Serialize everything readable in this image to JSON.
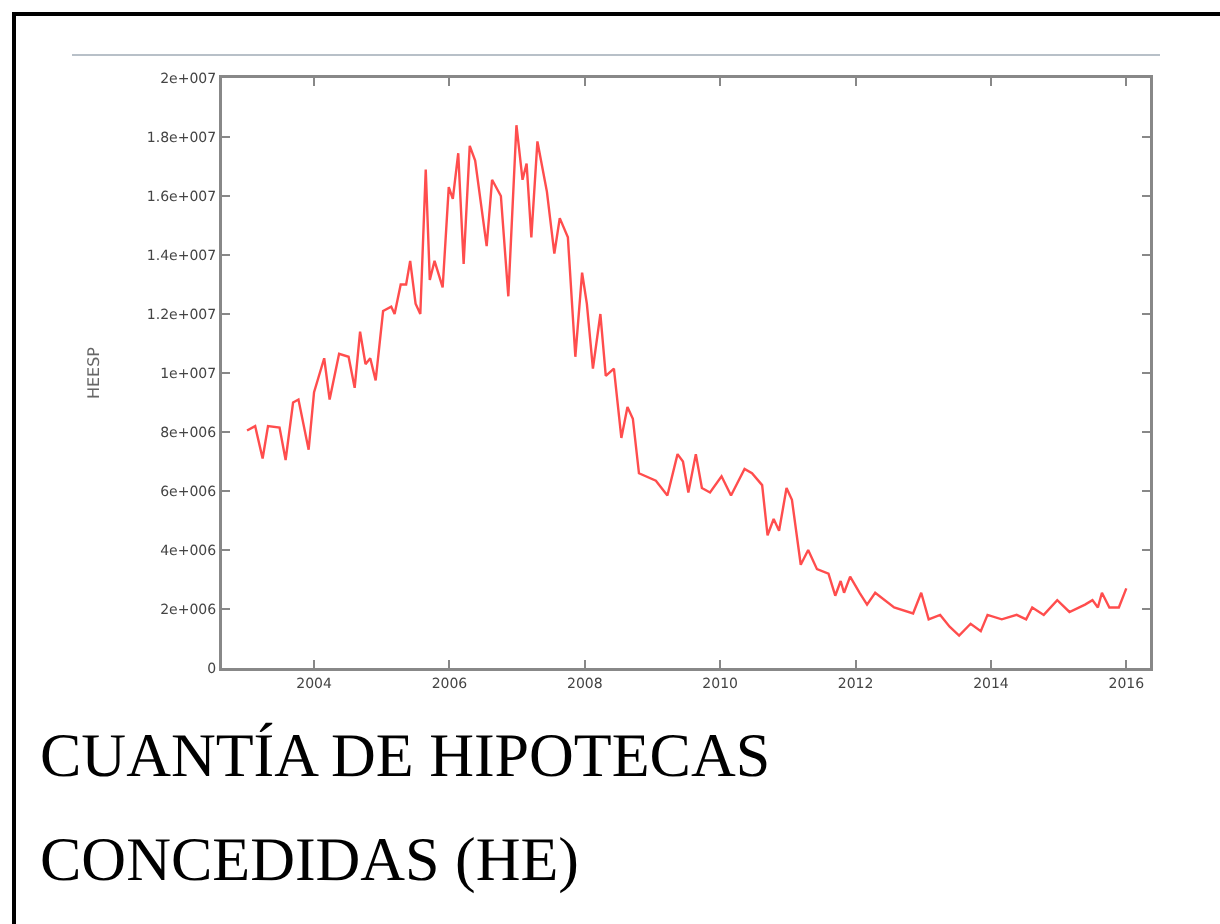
{
  "chart_data": {
    "type": "line",
    "title": "CUANTÍA DE HIPOTECAS CONCEDIDAS (HE)",
    "ylabel": "HEESP",
    "x": [
      2003.01,
      2003.13,
      2003.24,
      2003.32,
      2003.49,
      2003.58,
      2003.69,
      2003.77,
      2003.92,
      2004.0,
      2004.15,
      2004.23,
      2004.37,
      2004.51,
      2004.6,
      2004.68,
      2004.76,
      2004.83,
      2004.91,
      2005.02,
      2005.14,
      2005.19,
      2005.28,
      2005.36,
      2005.42,
      2005.5,
      2005.57,
      2005.65,
      2005.71,
      2005.78,
      2005.9,
      2005.99,
      2006.05,
      2006.13,
      2006.21,
      2006.3,
      2006.38,
      2006.55,
      2006.63,
      2006.76,
      2006.87,
      2006.99,
      2007.08,
      2007.14,
      2007.21,
      2007.3,
      2007.44,
      2007.55,
      2007.63,
      2007.75,
      2007.86,
      2007.96,
      2008.03,
      2008.12,
      2008.23,
      2008.31,
      2008.43,
      2008.54,
      2008.63,
      2008.71,
      2008.8,
      2009.05,
      2009.22,
      2009.37,
      2009.45,
      2009.53,
      2009.64,
      2009.73,
      2009.85,
      2010.02,
      2010.16,
      2010.36,
      2010.47,
      2010.62,
      2010.7,
      2010.79,
      2010.87,
      2010.98,
      2011.06,
      2011.19,
      2011.3,
      2011.43,
      2011.6,
      2011.7,
      2011.78,
      2011.83,
      2011.92,
      2012.06,
      2012.17,
      2012.29,
      2012.57,
      2012.85,
      2012.97,
      2013.08,
      2013.25,
      2013.39,
      2013.53,
      2013.7,
      2013.85,
      2013.95,
      2014.16,
      2014.38,
      2014.52,
      2014.61,
      2014.78,
      2014.98,
      2015.16,
      2015.39,
      2015.5,
      2015.58,
      2015.64,
      2015.75,
      2015.89,
      2016.0
    ],
    "series": [
      {
        "color": "#ff4d4d",
        "values": [
          8050000,
          8200000,
          7100000,
          8200000,
          8150000,
          7050000,
          9000000,
          9100000,
          7400000,
          9350000,
          10500000,
          9100000,
          10650000,
          10550000,
          9500000,
          11400000,
          10300000,
          10500000,
          9750000,
          12100000,
          12250000,
          12000000,
          13000000,
          13000000,
          13800000,
          12350000,
          12000000,
          16900000,
          13150000,
          13800000,
          12900000,
          16300000,
          15900000,
          17450000,
          13700000,
          17700000,
          17200000,
          14300000,
          16550000,
          16000000,
          12600000,
          18400000,
          16550000,
          17100000,
          14600000,
          17850000,
          16150000,
          14050000,
          15250000,
          14600000,
          10550000,
          13400000,
          12350000,
          10150000,
          12000000,
          9900000,
          10150000,
          7800000,
          8850000,
          8450000,
          6600000,
          6350000,
          5850000,
          7250000,
          7000000,
          5950000,
          7250000,
          6100000,
          5950000,
          6500000,
          5850000,
          6750000,
          6600000,
          6200000,
          4500000,
          5050000,
          4650000,
          6100000,
          5700000,
          3500000,
          4000000,
          3350000,
          3200000,
          2450000,
          2950000,
          2550000,
          3100000,
          2550000,
          2150000,
          2550000,
          2050000,
          1850000,
          2550000,
          1650000,
          1800000,
          1400000,
          1100000,
          1500000,
          1250000,
          1800000,
          1650000,
          1800000,
          1650000,
          2050000,
          1800000,
          2300000,
          1900000,
          2150000,
          2300000,
          2050000,
          2550000,
          2050000,
          2050000,
          2700000
        ]
      }
    ],
    "xlim": [
      2002.64,
      2016.35
    ],
    "xticks": [
      2004,
      2006,
      2008,
      2010,
      2012,
      2014,
      2016
    ],
    "ylim": [
      0,
      20000000
    ],
    "yticks": [
      0,
      {
        "value": 2000000,
        "label": "2e+006"
      },
      {
        "value": 4000000,
        "label": "4e+006"
      },
      {
        "value": 6000000,
        "label": "6e+006"
      },
      {
        "value": 8000000,
        "label": "8e+006"
      },
      {
        "value": 10000000,
        "label": "1e+007"
      },
      {
        "value": 12000000,
        "label": "1.2e+007"
      },
      {
        "value": 14000000,
        "label": "1.4e+007"
      },
      {
        "value": 16000000,
        "label": "1.6e+007"
      },
      {
        "value": 18000000,
        "label": "1.8e+007"
      },
      {
        "value": 20000000,
        "label": "2e+007"
      }
    ],
    "grid": false,
    "marker": "none",
    "line_style": "solid"
  }
}
